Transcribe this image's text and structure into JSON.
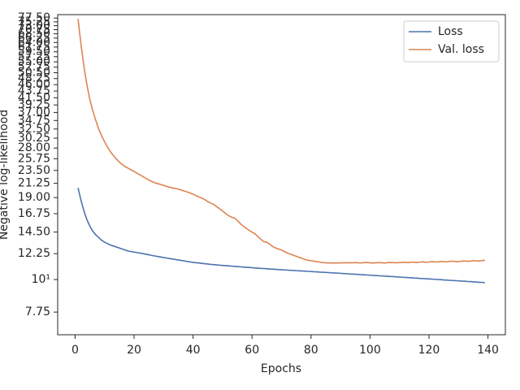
{
  "chart_data": {
    "type": "line",
    "xlabel": "Epochs",
    "ylabel": "Negative log-likelihood",
    "x": [
      1,
      2,
      3,
      4,
      5,
      6,
      7,
      8,
      9,
      10,
      11,
      12,
      13,
      14,
      15,
      16,
      17,
      18,
      19,
      20,
      21,
      22,
      23,
      24,
      25,
      26,
      27,
      28,
      29,
      30,
      31,
      32,
      33,
      34,
      35,
      36,
      37,
      38,
      39,
      40,
      41,
      42,
      43,
      44,
      45,
      46,
      47,
      48,
      49,
      50,
      51,
      52,
      53,
      54,
      55,
      56,
      57,
      58,
      59,
      60,
      61,
      62,
      63,
      64,
      65,
      66,
      67,
      68,
      69,
      70,
      71,
      72,
      73,
      74,
      75,
      76,
      77,
      78,
      79,
      80,
      81,
      82,
      83,
      84,
      85,
      86,
      87,
      88,
      89,
      90,
      91,
      92,
      93,
      94,
      95,
      96,
      97,
      98,
      99,
      100,
      101,
      102,
      103,
      104,
      105,
      106,
      107,
      108,
      109,
      110,
      111,
      112,
      113,
      114,
      115,
      116,
      117,
      118,
      119,
      120,
      121,
      122,
      123,
      124,
      125,
      126,
      127,
      128,
      129,
      130,
      131,
      132,
      133,
      134,
      135,
      136,
      137,
      138,
      139
    ],
    "series": [
      {
        "name": "Loss",
        "color": "#4c72b0",
        "values": [
          20.5,
          18.6,
          17.1,
          16.0,
          15.2,
          14.6,
          14.2,
          13.9,
          13.6,
          13.4,
          13.25,
          13.1,
          13.0,
          12.9,
          12.8,
          12.7,
          12.6,
          12.5,
          12.45,
          12.4,
          12.35,
          12.3,
          12.25,
          12.2,
          12.14,
          12.08,
          12.03,
          11.98,
          11.93,
          11.88,
          11.84,
          11.79,
          11.75,
          11.7,
          11.66,
          11.61,
          11.57,
          11.52,
          11.48,
          11.44,
          11.41,
          11.38,
          11.35,
          11.32,
          11.29,
          11.26,
          11.24,
          11.21,
          11.19,
          11.17,
          11.15,
          11.13,
          11.11,
          11.09,
          11.07,
          11.05,
          11.03,
          11.01,
          10.99,
          10.97,
          10.95,
          10.93,
          10.91,
          10.9,
          10.88,
          10.86,
          10.85,
          10.83,
          10.81,
          10.8,
          10.78,
          10.77,
          10.75,
          10.74,
          10.72,
          10.71,
          10.69,
          10.68,
          10.66,
          10.65,
          10.63,
          10.62,
          10.6,
          10.59,
          10.57,
          10.56,
          10.54,
          10.53,
          10.51,
          10.5,
          10.48,
          10.47,
          10.45,
          10.44,
          10.42,
          10.41,
          10.39,
          10.38,
          10.36,
          10.35,
          10.33,
          10.32,
          10.3,
          10.29,
          10.27,
          10.26,
          10.24,
          10.23,
          10.21,
          10.2,
          10.18,
          10.17,
          10.15,
          10.14,
          10.12,
          10.11,
          10.09,
          10.08,
          10.06,
          10.05,
          10.03,
          10.02,
          10.0,
          9.99,
          9.97,
          9.96,
          9.94,
          9.93,
          9.91,
          9.9,
          9.88,
          9.87,
          9.85,
          9.84,
          9.82,
          9.81,
          9.79,
          9.78,
          9.76
        ]
      },
      {
        "name": "Val. loss",
        "color": "#dd8452",
        "values": [
          77,
          63,
          53,
          46,
          41,
          37.5,
          34.8,
          32.5,
          30.8,
          29.4,
          28.2,
          27.2,
          26.4,
          25.7,
          25.1,
          24.6,
          24.2,
          23.9,
          23.6,
          23.3,
          23.0,
          22.7,
          22.4,
          22.1,
          21.8,
          21.55,
          21.35,
          21.2,
          21.05,
          20.9,
          20.75,
          20.6,
          20.5,
          20.4,
          20.3,
          20.15,
          20.0,
          19.85,
          19.7,
          19.5,
          19.3,
          19.1,
          18.9,
          18.7,
          18.4,
          18.2,
          18.0,
          17.7,
          17.4,
          17.1,
          16.8,
          16.5,
          16.3,
          16.2,
          15.9,
          15.5,
          15.2,
          14.95,
          14.7,
          14.5,
          14.3,
          14.0,
          13.7,
          13.45,
          13.4,
          13.2,
          12.95,
          12.8,
          12.7,
          12.6,
          12.45,
          12.3,
          12.2,
          12.1,
          12.0,
          11.9,
          11.8,
          11.7,
          11.62,
          11.58,
          11.55,
          11.5,
          11.46,
          11.42,
          11.4,
          11.39,
          11.38,
          11.38,
          11.38,
          11.39,
          11.4,
          11.4,
          11.41,
          11.4,
          11.42,
          11.4,
          11.39,
          11.42,
          11.43,
          11.4,
          11.38,
          11.4,
          11.42,
          11.4,
          11.38,
          11.42,
          11.43,
          11.42,
          11.4,
          11.42,
          11.45,
          11.44,
          11.42,
          11.46,
          11.45,
          11.43,
          11.47,
          11.48,
          11.45,
          11.47,
          11.5,
          11.48,
          11.47,
          11.52,
          11.5,
          11.48,
          11.53,
          11.55,
          11.52,
          11.5,
          11.55,
          11.57,
          11.54,
          11.55,
          11.6,
          11.58,
          11.56,
          11.6,
          11.63
        ]
      }
    ],
    "xlim": [
      -5.9,
      145.9
    ],
    "xticks": [
      0,
      20,
      40,
      60,
      80,
      100,
      120,
      140
    ],
    "ylim": [
      6.49,
      79.6
    ],
    "log_y": true,
    "yticks": [
      7.75,
      {
        "value": 10,
        "label": "10¹"
      },
      12.25,
      {
        "value": 14.5,
        "label": "14.50"
      },
      16.75,
      {
        "value": 19,
        "label": "19.00"
      },
      21.25,
      {
        "value": 23.5,
        "label": "23.50"
      },
      25.75,
      {
        "value": 28,
        "label": "28.00"
      },
      30.25,
      {
        "value": 32.5,
        "label": "32.50"
      },
      34.75,
      {
        "value": 37,
        "label": "37.00"
      },
      39.25,
      {
        "value": 41.5,
        "label": "41.50"
      },
      43.75,
      {
        "value": 46,
        "label": "46.00"
      },
      48.25,
      {
        "value": 50.5,
        "label": "50.50"
      },
      52.75,
      {
        "value": 55,
        "label": "55.00"
      },
      57.25,
      {
        "value": 59.5,
        "label": "59.50"
      },
      61.75,
      {
        "value": 64,
        "label": "64.00"
      },
      66.25,
      {
        "value": 68.5,
        "label": "68.50"
      },
      70.75,
      {
        "value": 73,
        "label": "73.00"
      },
      75.25,
      {
        "value": 77.5,
        "label": "77.50"
      }
    ],
    "legend": "upper right"
  }
}
